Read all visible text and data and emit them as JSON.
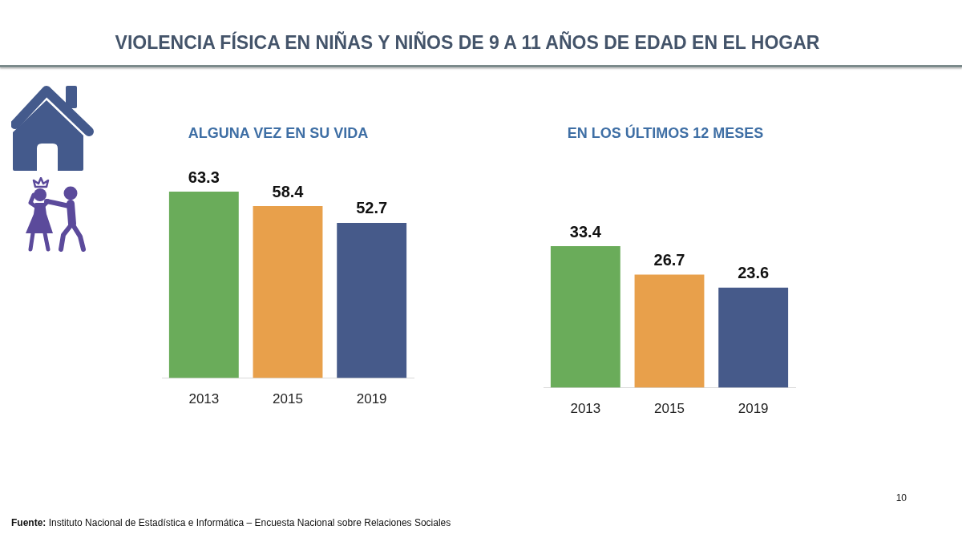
{
  "chart_data": [
    {
      "type": "bar",
      "title": "VIOLENCIA FÍSICA EN NIÑAS Y NIÑOS DE 9 A 11 AÑOS DE EDAD EN EL HOGAR",
      "subtitle": "ALGUNA VEZ EN SU VIDA",
      "categories": [
        "2013",
        "2015",
        "2019"
      ],
      "values": [
        63.3,
        58.4,
        52.7
      ],
      "colors": [
        "#6aac5a",
        "#e8a04b",
        "#465a8a"
      ],
      "data_labels": true,
      "tick_labels": "x",
      "annotations": [
        "Fuente: Instituto Nacional de Estadística e Informática – Encuesta Nacional sobre Relaciones Sociales"
      ]
    },
    {
      "type": "bar",
      "subtitle": "EN LOS ÚLTIMOS 12 MESES",
      "categories": [
        "2013",
        "2015",
        "2019"
      ],
      "values": [
        33.4,
        26.7,
        23.6
      ],
      "colors": [
        "#6aac5a",
        "#e8a04b",
        "#465a8a"
      ],
      "data_labels": true,
      "tick_labels": "x",
      "annotations": [
        "10"
      ]
    }
  ]
}
